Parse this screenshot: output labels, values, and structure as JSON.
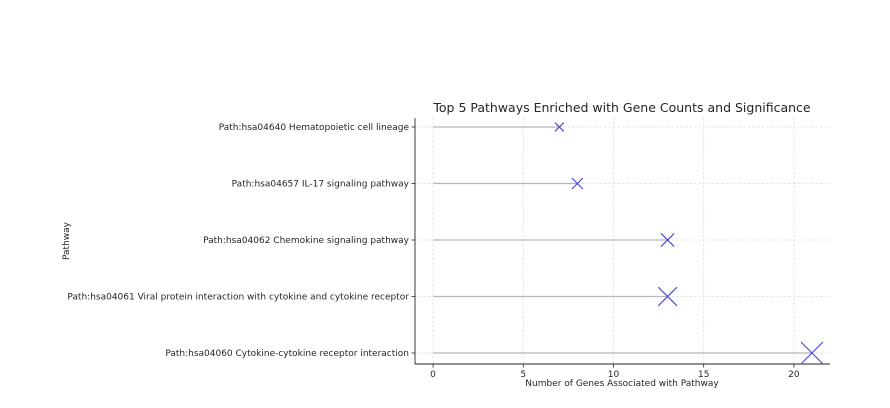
{
  "chart_data": {
    "type": "scatter",
    "title": "Top 5 Pathways Enriched with Gene Counts and Significance",
    "xlabel": "Number of Genes Associated with Pathway",
    "ylabel": "Pathway",
    "xlim": [
      -1,
      22
    ],
    "xticks": [
      0,
      5,
      10,
      15,
      20
    ],
    "grid": true,
    "categories": [
      "Path:hsa04640 Hematopoietic cell lineage",
      "Path:hsa04657 IL-17 signaling pathway",
      "Path:hsa04062 Chemokine signaling pathway",
      "Path:hsa04061 Viral protein interaction with cytokine and cytokine receptor",
      "Path:hsa04060 Cytokine-cytokine receptor interaction"
    ],
    "values": [
      7,
      8,
      13,
      13,
      21
    ],
    "significance_marker_scale": [
      0.4,
      0.5,
      0.6,
      0.85,
      1.0
    ],
    "marker": "x",
    "marker_color": "#4a4adb",
    "stem_color": "#b8b8b8"
  }
}
